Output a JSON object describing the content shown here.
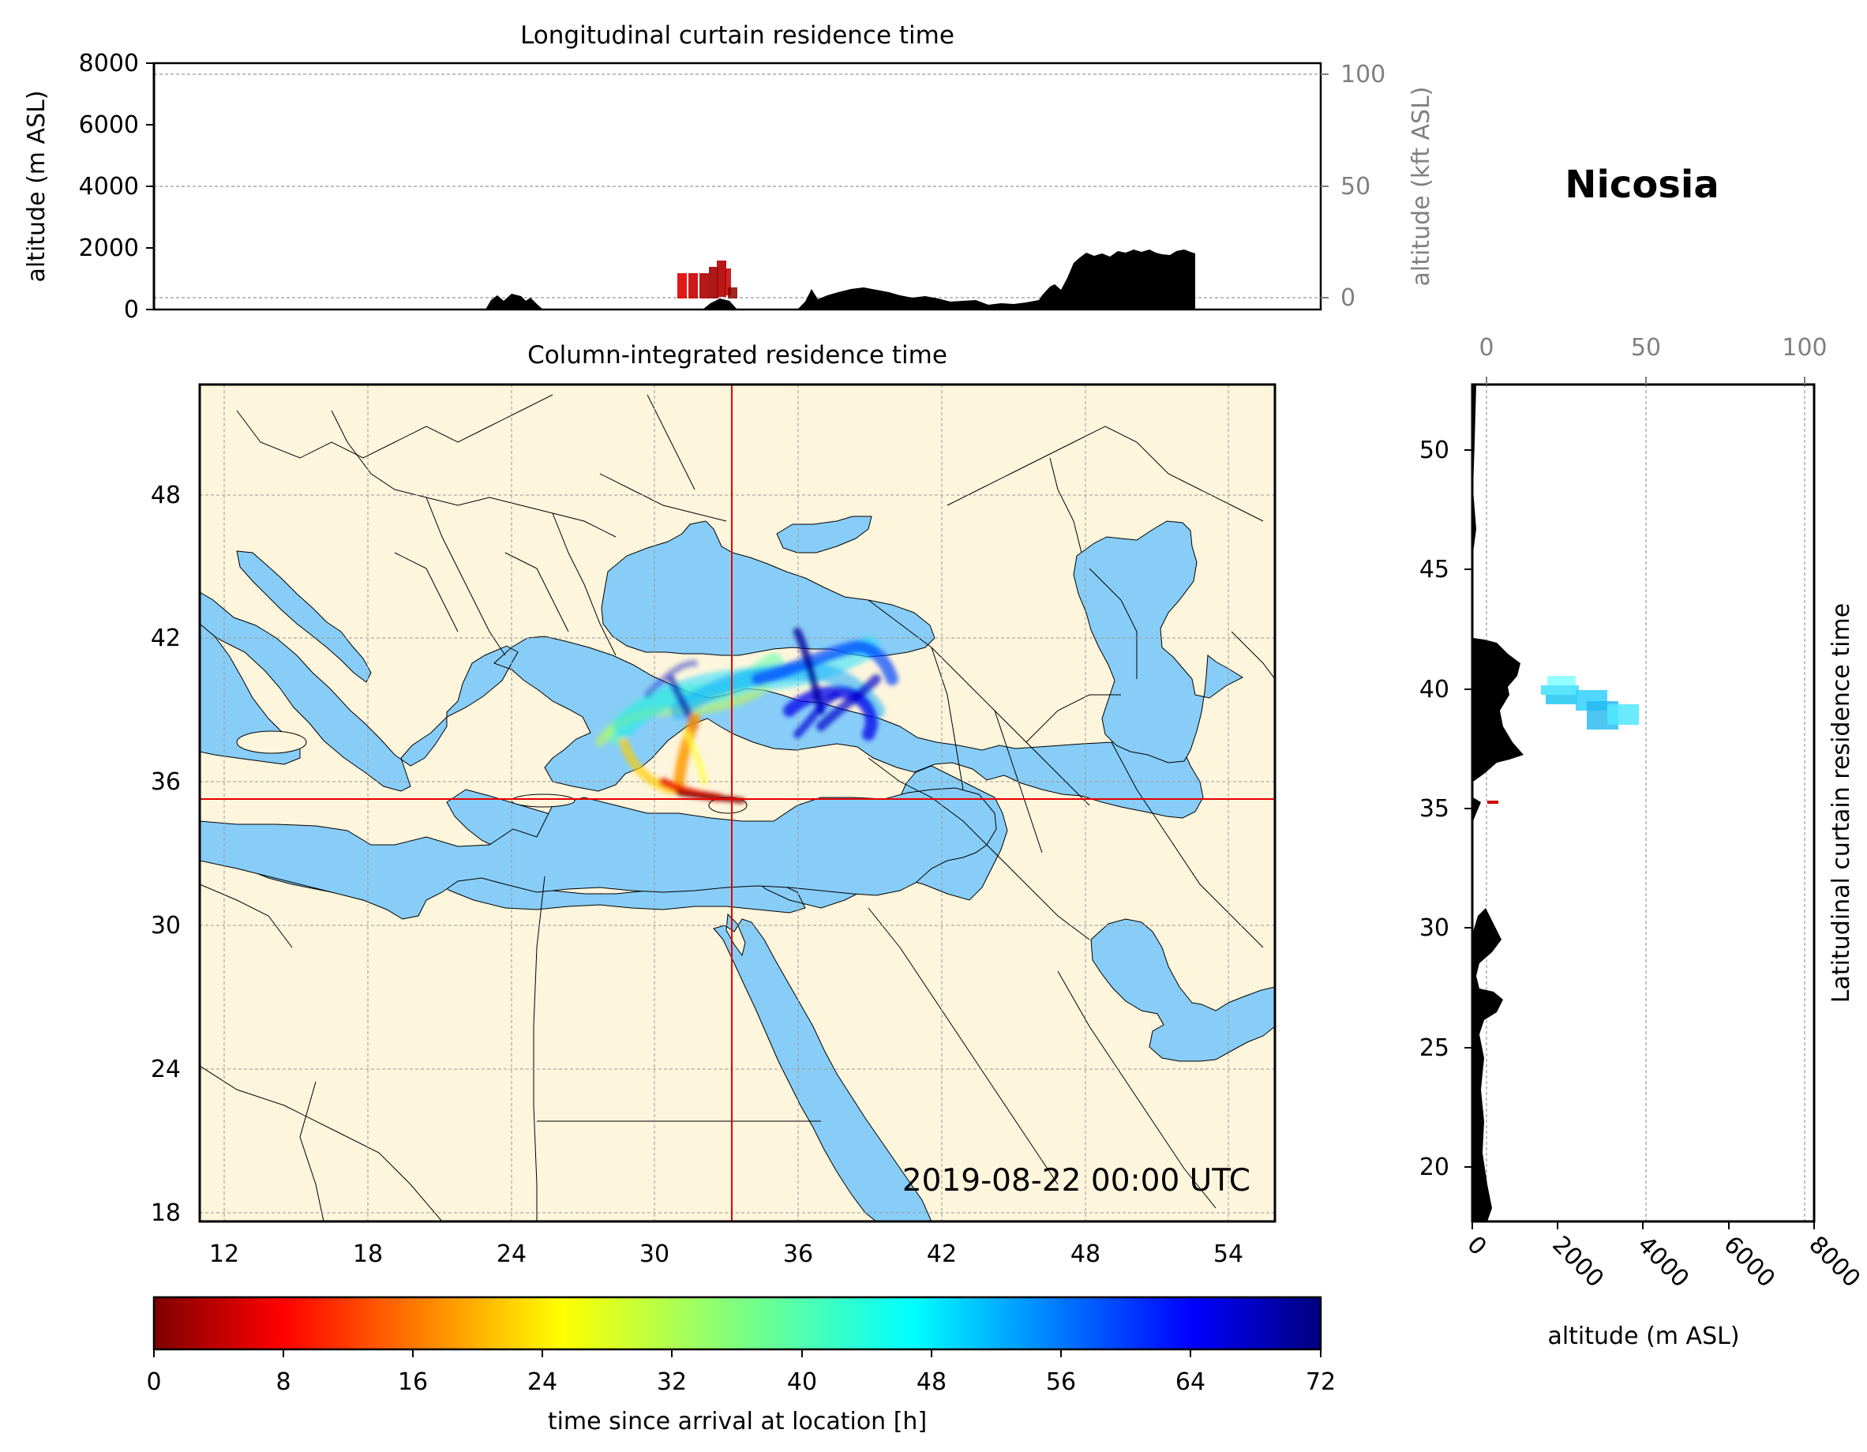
{
  "location_name": "Nicosia",
  "timestamp": "2019-08-22 00:00 UTC",
  "location_marker": {
    "lon": 33.4,
    "lat": 35.2
  },
  "longitudinal_curtain": {
    "title": "Longitudinal curtain residence time",
    "ylabel_left": "altitude (m ASL)",
    "ylabel_right": "altitude (kft ASL)",
    "yticks_left": [
      "0",
      "2000",
      "4000",
      "6000",
      "8000"
    ],
    "yticks_right": [
      "0",
      "50",
      "100"
    ],
    "ylim_m": [
      0,
      8000
    ]
  },
  "map": {
    "title": "Column-integrated residence time",
    "xticks": [
      "12",
      "18",
      "24",
      "30",
      "36",
      "42",
      "48",
      "54"
    ],
    "yticks": [
      "18",
      "24",
      "30",
      "36",
      "42",
      "48"
    ],
    "lon_range": [
      10.9,
      55.9
    ],
    "lat_range": [
      17.9,
      52.8
    ],
    "colors": {
      "land": "#fdf5dc",
      "sea": "#87cdf7",
      "border": "#000000",
      "crosshair": "#e60000"
    }
  },
  "latitudinal_curtain": {
    "ylabel": "Latitudinal curtain residence time",
    "xlabel": "altitude (m ASL)",
    "xticks_bottom": [
      "0",
      "2000",
      "4000",
      "6000",
      "8000"
    ],
    "xticks_top": [
      "0",
      "50",
      "100"
    ],
    "yticks": [
      "20",
      "25",
      "30",
      "35",
      "40",
      "45",
      "50"
    ]
  },
  "colorbar": {
    "label": "time since arrival at location [h]",
    "ticks": [
      "0",
      "8",
      "16",
      "24",
      "32",
      "40",
      "48",
      "56",
      "64",
      "72"
    ],
    "range": [
      0,
      72
    ],
    "colormap": "jet_r"
  }
}
